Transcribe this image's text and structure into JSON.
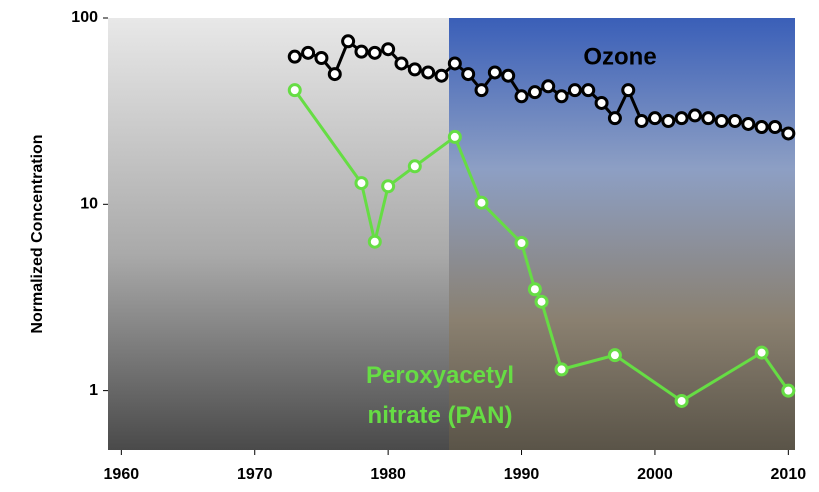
{
  "chart_data": {
    "type": "line",
    "ylabel": "Normalized Concentration",
    "log_scale_y": true,
    "xlim": [
      1959,
      2010.5
    ],
    "xticks": [
      1960,
      1970,
      1980,
      1990,
      2000,
      2010
    ],
    "ylim": [
      0.48,
      100
    ],
    "yticks": [
      1,
      10,
      100
    ],
    "series": [
      {
        "name": "Ozone",
        "color": "#000000",
        "marker_fill": "#ffffff",
        "x": [
          1973,
          1974,
          1975,
          1976,
          1977,
          1978,
          1979,
          1980,
          1981,
          1982,
          1983,
          1984,
          1985,
          1986,
          1987,
          1988,
          1989,
          1990,
          1991,
          1992,
          1993,
          1994,
          1995,
          1996,
          1997,
          1998,
          1999,
          2000,
          2001,
          2002,
          2003,
          2004,
          2005,
          2006,
          2007,
          2008,
          2009,
          2010
        ],
        "values": [
          62,
          65,
          61,
          50,
          75,
          66,
          65,
          68,
          57,
          53,
          51,
          49,
          57,
          50,
          41,
          51,
          49,
          38,
          40,
          43,
          38,
          41,
          41,
          35,
          29,
          41,
          28,
          29,
          28,
          29,
          30,
          29,
          28,
          28,
          27,
          26,
          26,
          24
        ]
      },
      {
        "name": "Peroxyacetyl nitrate (PAN)",
        "color": "#66dd44",
        "marker_fill": "#ffffff",
        "x": [
          1973,
          1978,
          1979,
          1980,
          1982,
          1985,
          1987,
          1990,
          1991,
          1991.5,
          1993,
          1997,
          2002,
          2008,
          2010
        ],
        "values": [
          41,
          13,
          6.3,
          12.5,
          16,
          23,
          10.2,
          6.2,
          3.5,
          3.0,
          1.3,
          1.55,
          0.88,
          1.6,
          1.0
        ]
      }
    ]
  }
}
